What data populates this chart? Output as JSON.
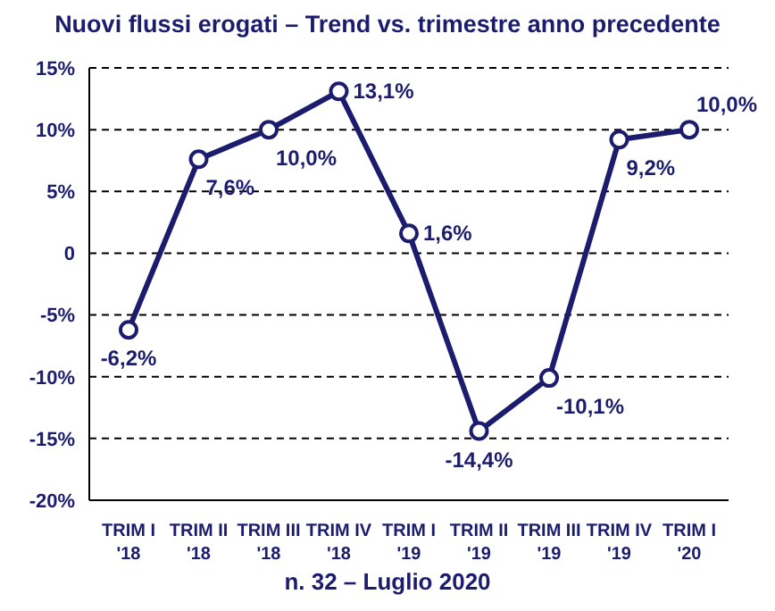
{
  "chart_data": {
    "type": "line",
    "title": "Nuovi flussi erogati – Trend vs. trimestre anno precedente",
    "categories": [
      "TRIM I\n'18",
      "TRIM II\n'18",
      "TRIM III\n'18",
      "TRIM IV\n'18",
      "TRIM I\n'19",
      "TRIM II\n'19",
      "TRIM III\n'19",
      "TRIM IV\n'19",
      "TRIM I\n'20"
    ],
    "series": [
      {
        "color": "#1c1c6e",
        "values": [
          -6.2,
          7.6,
          10.0,
          13.1,
          1.6,
          -14.4,
          -10.1,
          9.2,
          10.0
        ],
        "value_labels": [
          "-6,2%",
          "7,6%",
          "10,0%",
          "13,1%",
          "1,6%",
          "-14,4%",
          "-10,1%",
          "9,2%",
          "10,0%"
        ]
      }
    ],
    "ylim": [
      -20,
      15
    ],
    "yticks": [
      {
        "value": -20,
        "label": "-20%"
      },
      {
        "value": -15,
        "label": "-15%"
      },
      {
        "value": -10,
        "label": "-10%"
      },
      {
        "value": -5,
        "label": "-5%"
      },
      {
        "value": 0,
        "label": "0"
      },
      {
        "value": 5,
        "label": "5%"
      },
      {
        "value": 10,
        "label": "10%"
      },
      {
        "value": 15,
        "label": "15%"
      }
    ],
    "grid": "y",
    "marker": "circle",
    "line_style": "solid",
    "annotations": [
      "n. 32 – Luglio 2020"
    ]
  }
}
